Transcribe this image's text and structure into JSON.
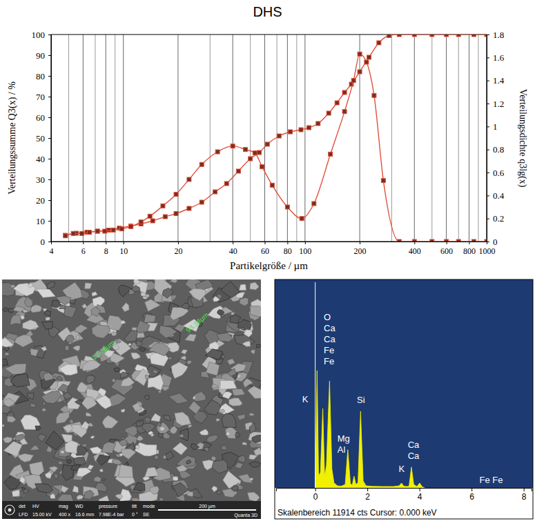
{
  "title": "DHS",
  "chart_data": [
    {
      "type": "line",
      "x_label": "Partikelgröße / µm",
      "y_label": "Verteilungssumme Q3(x) / %",
      "y2_label": "Verteilungsdichte q3lg(x)",
      "log": "x",
      "grid": true,
      "xlim": [
        4,
        1000
      ],
      "xticks": [
        4,
        6,
        8,
        10,
        20,
        40,
        60,
        80,
        100,
        200,
        400,
        600,
        800,
        1000
      ],
      "ylim": [
        0,
        100
      ],
      "yticks": [
        0,
        10,
        20,
        30,
        40,
        50,
        60,
        70,
        80,
        90,
        100
      ],
      "y2lim": [
        0,
        1.8
      ],
      "y2ticks": [
        0,
        0.2,
        0.4,
        0.6,
        0.8,
        1,
        1.2,
        1.4,
        1.6,
        1.8
      ],
      "series": [
        {
          "color": "#e0503c",
          "marker": "square",
          "x": [
            4.8,
            5.5,
            6.3,
            7.2,
            8.3,
            9.5,
            11,
            12.5,
            14.5,
            17,
            19.5,
            23,
            27,
            32,
            37,
            43,
            50,
            56,
            62,
            72,
            83,
            95,
            105,
            118,
            135,
            150,
            165,
            180,
            200,
            225,
            255,
            290,
            330,
            400,
            500,
            600,
            700,
            850,
            1000
          ],
          "values": [
            3,
            4,
            4.5,
            5,
            5.5,
            6.5,
            7.5,
            8.5,
            10,
            12,
            13.5,
            16,
            19,
            24,
            28,
            34,
            40,
            43,
            47,
            51,
            53,
            54,
            55,
            57,
            62,
            67,
            72,
            76,
            82,
            89,
            96,
            99.5,
            100,
            100,
            100,
            100,
            100,
            100,
            100
          ]
        },
        {
          "color": "#e0503c",
          "marker": "square",
          "axis": "y2",
          "x": [
            4.8,
            5.3,
            5.9,
            6.5,
            7.2,
            7.9,
            8.8,
            9.8,
            11,
            12.5,
            14,
            16.5,
            19.5,
            23,
            27,
            33,
            40,
            47,
            53,
            58,
            66,
            80,
            96,
            112,
            138,
            165,
            185,
            200,
            218,
            240,
            270,
            330,
            400,
            500,
            600,
            700,
            850,
            1000
          ],
          "values": [
            0.05,
            0.07,
            0.07,
            0.08,
            0.09,
            0.09,
            0.1,
            0.11,
            0.13,
            0.17,
            0.22,
            0.31,
            0.41,
            0.54,
            0.67,
            0.78,
            0.83,
            0.8,
            0.77,
            0.65,
            0.49,
            0.3,
            0.2,
            0.33,
            0.76,
            1.13,
            1.4,
            1.63,
            1.56,
            1.27,
            0.53,
            0,
            0,
            0,
            0,
            0,
            0,
            0
          ]
        }
      ]
    },
    {
      "type": "area",
      "xlim": [
        -1.5,
        8.3
      ],
      "xticks": [
        0,
        2,
        4,
        6,
        8
      ],
      "ylim": [
        0,
        11914
      ],
      "tick_labels": "x",
      "color": "#f0f000",
      "x": [
        0,
        0.07,
        0.13,
        0.2,
        0.29,
        0.36,
        0.43,
        0.55,
        0.64,
        0.72,
        0.85,
        1.0,
        1.15,
        1.25,
        1.35,
        1.42,
        1.49,
        1.56,
        1.64,
        1.74,
        1.84,
        1.95,
        2.2,
        2.6,
        3.0,
        3.22,
        3.31,
        3.4,
        3.52,
        3.6,
        3.69,
        3.78,
        3.9,
        4.01,
        4.1,
        4.2
      ],
      "values": [
        0,
        6800,
        700,
        900,
        4600,
        700,
        1300,
        6200,
        1100,
        300,
        120,
        100,
        200,
        2210,
        250,
        160,
        680,
        200,
        300,
        4440,
        400,
        120,
        90,
        80,
        80,
        120,
        280,
        100,
        80,
        100,
        1210,
        200,
        80,
        280,
        70,
        0
      ],
      "cursor": 0,
      "footer": "Skalenbereich 11914 cts Cursor: 0.000 keV",
      "peak_labels": [
        {
          "texts": [
            "O",
            "Ca",
            "Ca",
            "Fe",
            "Fe"
          ],
          "energy": 0.33,
          "counts": 9700
        },
        {
          "texts": [
            "K"
          ],
          "energy": -0.5,
          "counts": 4960
        },
        {
          "texts": [
            "Mg",
            "Al"
          ],
          "energy": 0.85,
          "counts": 2680
        },
        {
          "texts": [
            "Si"
          ],
          "energy": 1.6,
          "counts": 4900
        },
        {
          "texts": [
            "Ca",
            "Ca"
          ],
          "energy": 3.55,
          "counts": 2300
        },
        {
          "texts": [
            "K"
          ],
          "energy": 3.2,
          "counts": 900
        },
        {
          "texts": [
            "Fe Fe"
          ],
          "energy": 6.3,
          "counts": 280
        }
      ]
    }
  ],
  "sem_image": {
    "measurements": [
      "12.76µm",
      "93.34µm"
    ],
    "info_headers": [
      "det",
      "HV",
      "mag",
      "WD",
      "pressure",
      "tilt",
      "mode"
    ],
    "info_values": [
      "LFD",
      "15.00 kV",
      "400 x",
      "16.6 mm",
      "7.98E-4 bar",
      "0 °",
      "SE"
    ],
    "scale_bar": "200 µm",
    "instrument": "Quanta 3D"
  }
}
